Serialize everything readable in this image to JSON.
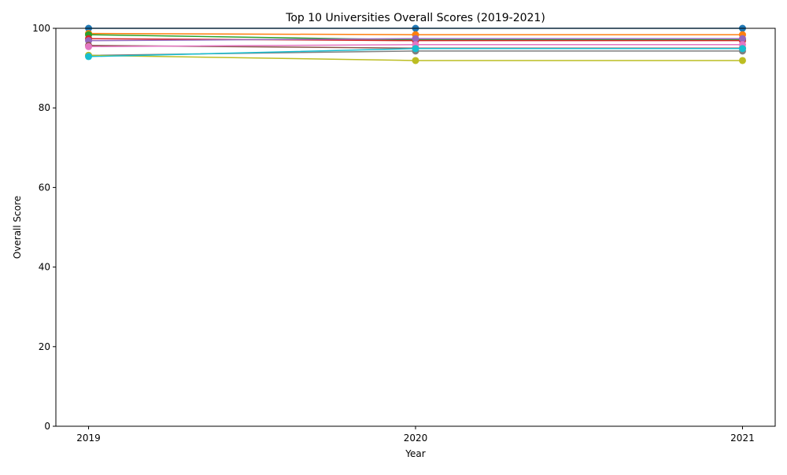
{
  "chart_data": {
    "type": "line",
    "title": "Top 10 Universities Overall Scores (2019-2021)",
    "xlabel": "Year",
    "ylabel": "Overall Score",
    "x": [
      2019,
      2020,
      2021
    ],
    "xlim": [
      2018.9,
      2021.1
    ],
    "ylim": [
      0,
      100
    ],
    "y_ticks": [
      0,
      20,
      40,
      60,
      80,
      100
    ],
    "grid": false,
    "legend": "none",
    "marker": "circle",
    "series": [
      {
        "color": "#1f77b4",
        "values": [
          100.0,
          100.0,
          100.0
        ]
      },
      {
        "color": "#ff7f0e",
        "values": [
          98.7,
          98.4,
          98.4
        ]
      },
      {
        "color": "#2ca02c",
        "values": [
          98.4,
          97.1,
          97.1
        ]
      },
      {
        "color": "#d62728",
        "values": [
          97.4,
          96.9,
          96.9
        ]
      },
      {
        "color": "#9467bd",
        "values": [
          96.9,
          97.4,
          97.4
        ]
      },
      {
        "color": "#8c564b",
        "values": [
          95.7,
          95.0,
          95.0
        ]
      },
      {
        "color": "#e377c2",
        "values": [
          95.4,
          95.9,
          95.9
        ]
      },
      {
        "color": "#7f7f7f",
        "values": [
          93.2,
          94.3,
          94.3
        ]
      },
      {
        "color": "#bcbd22",
        "values": [
          93.2,
          91.9,
          91.9
        ]
      },
      {
        "color": "#17becf",
        "values": [
          92.9,
          94.9,
          94.9
        ]
      }
    ]
  }
}
